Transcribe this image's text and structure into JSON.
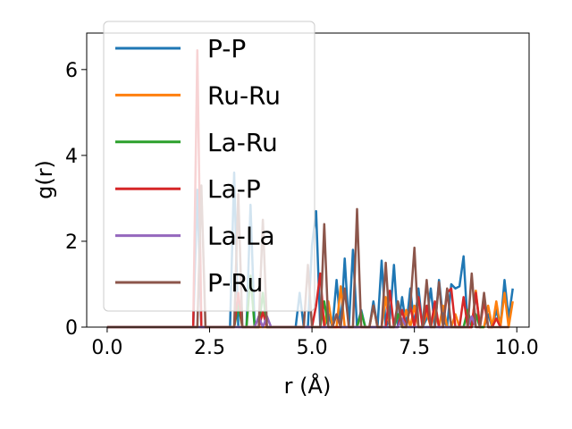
{
  "chart_data": {
    "type": "line",
    "xlabel": "r (Å)",
    "ylabel": "g(r)",
    "xlim": [
      -0.5,
      10.3
    ],
    "ylim": [
      0,
      6.85
    ],
    "xticks": [
      0.0,
      2.5,
      5.0,
      7.5,
      10.0
    ],
    "xtick_labels": [
      "0.0",
      "2.5",
      "5.0",
      "7.5",
      "10.0"
    ],
    "yticks": [
      0,
      2,
      4,
      6
    ],
    "ytick_labels": [
      "0",
      "2",
      "4",
      "6"
    ],
    "legend_position": "upper-left",
    "grid": false,
    "series": [
      {
        "name": "P-P",
        "color": "#1f77b4",
        "x": [
          0,
          2.1,
          2.2,
          2.3,
          2.4,
          2.5,
          3.0,
          3.1,
          3.2,
          3.3,
          3.4,
          3.5,
          3.6,
          3.7,
          3.8,
          3.9,
          4.0,
          4.1,
          4.6,
          4.7,
          4.8,
          4.9,
          5.0,
          5.1,
          5.2,
          5.3,
          5.4,
          5.5,
          5.6,
          5.7,
          5.8,
          5.9,
          6.0,
          6.1,
          6.2,
          6.3,
          6.4,
          6.5,
          6.6,
          6.7,
          6.8,
          6.9,
          7.0,
          7.1,
          7.2,
          7.3,
          7.4,
          7.5,
          7.6,
          7.7,
          7.8,
          7.9,
          8.0,
          8.1,
          8.2,
          8.3,
          8.4,
          8.5,
          8.6,
          8.7,
          8.8,
          8.9,
          9.0,
          9.1,
          9.2,
          9.3,
          9.4,
          9.5,
          9.6,
          9.7,
          9.8,
          9.9
        ],
        "y": [
          0,
          0,
          3.2,
          0,
          0,
          0,
          0,
          3.6,
          0,
          0,
          0,
          2.85,
          0,
          0,
          0,
          0,
          0,
          0,
          0,
          0.8,
          0,
          0,
          1.9,
          2.7,
          0,
          0,
          0.3,
          0,
          1.1,
          0,
          1.6,
          0,
          1.8,
          0,
          0.4,
          0,
          0,
          0.6,
          0,
          1.55,
          0,
          0.2,
          1.45,
          0,
          0.7,
          0,
          0.9,
          0,
          0.9,
          0,
          0.2,
          0.9,
          0,
          1.1,
          0.2,
          0,
          1.0,
          0.9,
          0.95,
          1.65,
          0,
          0,
          0.8,
          0,
          0,
          0.3,
          0,
          0.4,
          0,
          1.1,
          0.2,
          0.9
        ]
      },
      {
        "name": "Ru-Ru",
        "color": "#ff7f0e",
        "x": [
          0,
          5.3,
          5.4,
          5.5,
          5.6,
          5.7,
          5.8,
          5.9,
          6.0,
          6.1,
          6.2,
          6.3,
          6.4,
          6.5,
          6.6,
          6.7,
          6.8,
          6.9,
          7.0,
          7.1,
          7.2,
          7.3,
          7.4,
          7.5,
          7.6,
          7.7,
          7.8,
          7.9,
          8.0,
          8.1,
          8.2,
          8.3,
          8.4,
          8.5,
          8.6,
          8.7,
          8.8,
          8.9,
          9.0,
          9.1,
          9.2,
          9.3,
          9.4,
          9.5,
          9.6,
          9.7,
          9.8,
          9.9
        ],
        "y": [
          0,
          0,
          0.6,
          0,
          0,
          0.95,
          0,
          0,
          0,
          0,
          0,
          0,
          0,
          0.5,
          0,
          0,
          0.7,
          0,
          0,
          0.3,
          0,
          0.4,
          0,
          0.5,
          0,
          0,
          0.35,
          0,
          0.4,
          0,
          0.5,
          0,
          0,
          0.3,
          0,
          0,
          0,
          0,
          0.85,
          0,
          0,
          0.5,
          0,
          0.6,
          0,
          0.8,
          0,
          0.6
        ]
      },
      {
        "name": "La-Ru",
        "color": "#2ca02c",
        "x": [
          0,
          3.0,
          3.1,
          3.2,
          3.3,
          3.4,
          3.5,
          3.6,
          3.7,
          3.8,
          3.9,
          4.0,
          4.1,
          5.2,
          5.3,
          5.4,
          6.0,
          6.1,
          6.2,
          6.3,
          6.4,
          7.0,
          7.1,
          7.2,
          8.6,
          8.7,
          8.8,
          8.9,
          9.0,
          9.1,
          9.2
        ],
        "y": [
          0,
          0,
          0,
          0.5,
          0,
          0,
          1.2,
          0,
          0,
          0.8,
          0,
          0,
          0,
          0,
          0.6,
          0,
          0,
          0,
          0.35,
          0,
          0,
          0,
          0.3,
          0,
          0,
          0,
          0.4,
          0,
          0.3,
          0,
          0
        ]
      },
      {
        "name": "La-P",
        "color": "#d62728",
        "x": [
          0,
          2.1,
          2.2,
          2.3,
          2.4,
          2.5,
          3.0,
          3.1,
          3.2,
          3.3,
          3.4,
          3.5,
          3.6,
          3.7,
          3.8,
          3.9,
          4.0,
          4.1,
          4.2,
          4.9,
          5.0,
          5.1,
          5.2,
          5.3,
          5.4,
          5.5,
          6.1,
          6.2,
          6.3,
          6.4,
          6.5,
          6.6,
          6.7,
          6.8,
          6.9,
          7.0,
          7.1,
          7.2,
          7.3,
          7.4,
          7.5,
          7.6,
          7.7,
          7.8,
          7.9,
          8.0,
          8.1,
          8.2,
          8.3,
          8.4,
          8.5,
          8.6,
          8.7,
          8.8,
          8.9,
          9.0,
          9.1,
          9.2,
          9.3,
          9.4,
          9.5,
          9.6
        ],
        "y": [
          0,
          0,
          6.45,
          0,
          0,
          0,
          0,
          0,
          0.8,
          0,
          0,
          0,
          0,
          0,
          0.35,
          0,
          0,
          0,
          0,
          0,
          0,
          0.5,
          1.25,
          0,
          0,
          0,
          0,
          0,
          0,
          0,
          0,
          0,
          0,
          0,
          0.85,
          0,
          0,
          0.4,
          0,
          0.5,
          0,
          0.7,
          0,
          0.5,
          0,
          0.6,
          0,
          0,
          0.8,
          0.9,
          0,
          0,
          0.7,
          0,
          0,
          0.8,
          0,
          0.6,
          0,
          0,
          0.2,
          0
        ]
      },
      {
        "name": "La-La",
        "color": "#9467bd",
        "x": [
          0,
          3.6,
          3.7,
          3.8,
          3.9,
          4.0,
          5.5,
          5.6,
          5.7,
          5.8,
          7.1,
          7.2,
          7.3,
          8.8,
          8.9,
          9.0
        ],
        "y": [
          0,
          0,
          0.25,
          0,
          0.25,
          0,
          0,
          0.3,
          0,
          0,
          0,
          0.2,
          0,
          0,
          0.25,
          0
        ]
      },
      {
        "name": "P-Ru",
        "color": "#8c564b",
        "x": [
          0,
          2.1,
          2.2,
          2.3,
          2.4,
          2.5,
          3.0,
          3.1,
          3.2,
          3.3,
          3.4,
          3.5,
          3.6,
          3.7,
          3.8,
          3.9,
          4.0,
          4.1,
          4.2,
          4.8,
          4.9,
          5.0,
          5.1,
          5.2,
          5.3,
          5.4,
          5.5,
          5.6,
          5.7,
          5.8,
          5.9,
          6.0,
          6.1,
          6.2,
          6.3,
          6.4,
          6.5,
          6.6,
          6.7,
          6.8,
          6.9,
          7.0,
          7.1,
          7.2,
          7.3,
          7.4,
          7.5,
          7.6,
          7.7,
          7.8,
          7.9,
          8.0,
          8.1,
          8.2,
          8.3,
          8.4,
          8.5,
          8.6,
          8.7,
          8.8,
          8.9,
          9.0,
          9.1,
          9.2,
          9.3,
          9.4,
          9.5,
          9.6,
          9.7,
          9.8
        ],
        "y": [
          0,
          0,
          0,
          3.3,
          0,
          0,
          0,
          0,
          3.1,
          0,
          0,
          0,
          0,
          0,
          2.5,
          0,
          0,
          0,
          0,
          0,
          1.45,
          0,
          0,
          0,
          2.4,
          0,
          0,
          0.3,
          0,
          0.9,
          0,
          0,
          2.75,
          0,
          0,
          0,
          0.5,
          0,
          0,
          1.5,
          0,
          0,
          0.6,
          0,
          0,
          0.5,
          1.85,
          0,
          0,
          1.1,
          0,
          0,
          1.05,
          0,
          0.9,
          0,
          0,
          0,
          0,
          0,
          1.25,
          0,
          0,
          0.8,
          0,
          0,
          0,
          0,
          0,
          0
        ]
      }
    ]
  }
}
